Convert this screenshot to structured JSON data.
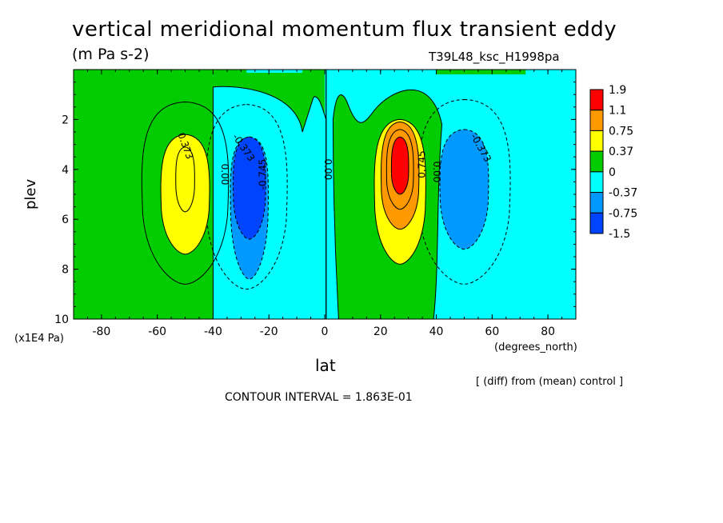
{
  "header": {
    "title": "vertical meridional momentum flux transient eddy",
    "units": "(m Pa s-2)",
    "run_label": "T39L48_ksc_H1998pa"
  },
  "footer": {
    "contour_interval": "CONTOUR INTERVAL = 1.863E-01",
    "diff_note": "[ (diff) from (mean) control ]"
  },
  "chart_data": {
    "type": "contour",
    "xlabel": "lat",
    "ylabel": "plev",
    "xunits": "(degrees_north)",
    "yunits": "(x1E4 Pa)",
    "xlim": [
      -90,
      90
    ],
    "ylim": [
      10,
      0
    ],
    "xticks": [
      -80,
      -60,
      -40,
      -20,
      0,
      20,
      40,
      60,
      80
    ],
    "yticks": [
      2,
      4,
      6,
      8,
      10
    ],
    "contour_interval": 0.1863,
    "colorbar": {
      "labels": [
        "1.9",
        "1.1",
        "0.75",
        "0.37",
        "0",
        "-0.37",
        "-0.75",
        "-1.5"
      ],
      "colors": [
        "#ff0000",
        "#ff9900",
        "#ffff00",
        "#00cc00",
        "#00ffff",
        "#0099ff",
        "#0044ff"
      ]
    },
    "contour_labels": [
      "0.373",
      "-0.373",
      "0.00",
      "-0.745",
      "0.00",
      "0.745",
      "0.00",
      "-0.373"
    ],
    "field_features": [
      {
        "type": "max",
        "lat": -50,
        "plev": 4.2,
        "value": 0.56
      },
      {
        "type": "min",
        "lat": -27,
        "plev": 4.4,
        "value": -1.2
      },
      {
        "type": "max",
        "lat": 27,
        "plev": 3.9,
        "value": 1.6
      },
      {
        "type": "min",
        "lat": 50,
        "plev": 4.2,
        "value": -0.65
      }
    ]
  }
}
